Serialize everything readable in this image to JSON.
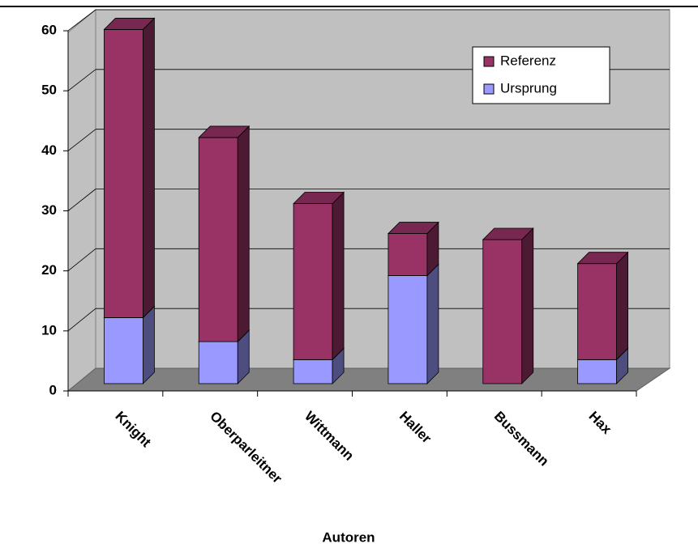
{
  "chart_data": {
    "type": "bar3d_stacked",
    "x_label": "Autoren",
    "categories": [
      "Knight",
      "Oberparleitner",
      "Wittmann",
      "Haller",
      "Bussmann",
      "Hax"
    ],
    "series": [
      {
        "name": "Ursprung",
        "color": "#9999ff",
        "values": [
          11,
          7,
          4,
          18,
          0,
          4
        ]
      },
      {
        "name": "Referenz",
        "color": "#993366",
        "values": [
          48,
          34,
          26,
          7,
          24,
          16
        ]
      }
    ],
    "ylim": [
      0,
      60
    ],
    "yticks": [
      0,
      10,
      20,
      30,
      40,
      50,
      60
    ],
    "grid": true,
    "legend": "top-right"
  }
}
